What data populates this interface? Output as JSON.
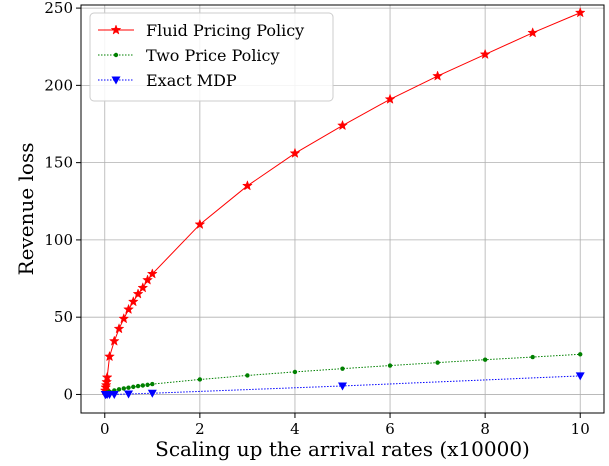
{
  "chart_data": {
    "type": "line",
    "title": "",
    "xlabel": "Scaling up the arrival rates (x10000)",
    "ylabel": "Revenue loss",
    "xlim": [
      -0.5,
      10.5
    ],
    "ylim": [
      -12,
      252
    ],
    "xticks": [
      0,
      2,
      4,
      6,
      8,
      10
    ],
    "yticks": [
      0,
      50,
      100,
      150,
      200,
      250
    ],
    "grid": true,
    "legend_position": "top-left",
    "series": [
      {
        "name": "Fluid Pricing Policy",
        "color": "#ff0000",
        "marker": "star",
        "linestyle": "solid",
        "x": [
          0.01,
          0.02,
          0.03,
          0.04,
          0.05,
          0.1,
          0.2,
          0.3,
          0.4,
          0.5,
          0.6,
          0.7,
          0.8,
          0.9,
          1,
          2,
          3,
          4,
          5,
          6,
          7,
          8,
          9,
          10
        ],
        "y": [
          2.5,
          4.5,
          6,
          8,
          11,
          24.5,
          34.5,
          42.5,
          49,
          55,
          60,
          65,
          69,
          74,
          78,
          110,
          135,
          156,
          174,
          191,
          206,
          220,
          234,
          247
        ]
      },
      {
        "name": "Two Price Policy",
        "color": "#008000",
        "marker": "dot",
        "linestyle": "dotted",
        "x": [
          0.01,
          0.02,
          0.03,
          0.04,
          0.05,
          0.1,
          0.2,
          0.3,
          0.4,
          0.5,
          0.6,
          0.7,
          0.8,
          0.9,
          1,
          2,
          3,
          4,
          5,
          6,
          7,
          8,
          9,
          10
        ],
        "y": [
          0.5,
          0.7,
          0.9,
          1,
          1.2,
          1.8,
          2.6,
          3.3,
          3.9,
          4.4,
          4.9,
          5.4,
          5.8,
          6.2,
          6.7,
          9.7,
          12.3,
          14.6,
          16.7,
          18.7,
          20.6,
          22.5,
          24.2,
          26
        ]
      },
      {
        "name": "Exact MDP",
        "color": "#0000ff",
        "marker": "triangle-down",
        "linestyle": "dotted",
        "x": [
          0.01,
          0.02,
          0.05,
          0.1,
          0.2,
          0.5,
          1,
          5,
          10
        ],
        "y": [
          0,
          0,
          0,
          0,
          0,
          0.3,
          0.8,
          5.5,
          12
        ]
      }
    ]
  }
}
